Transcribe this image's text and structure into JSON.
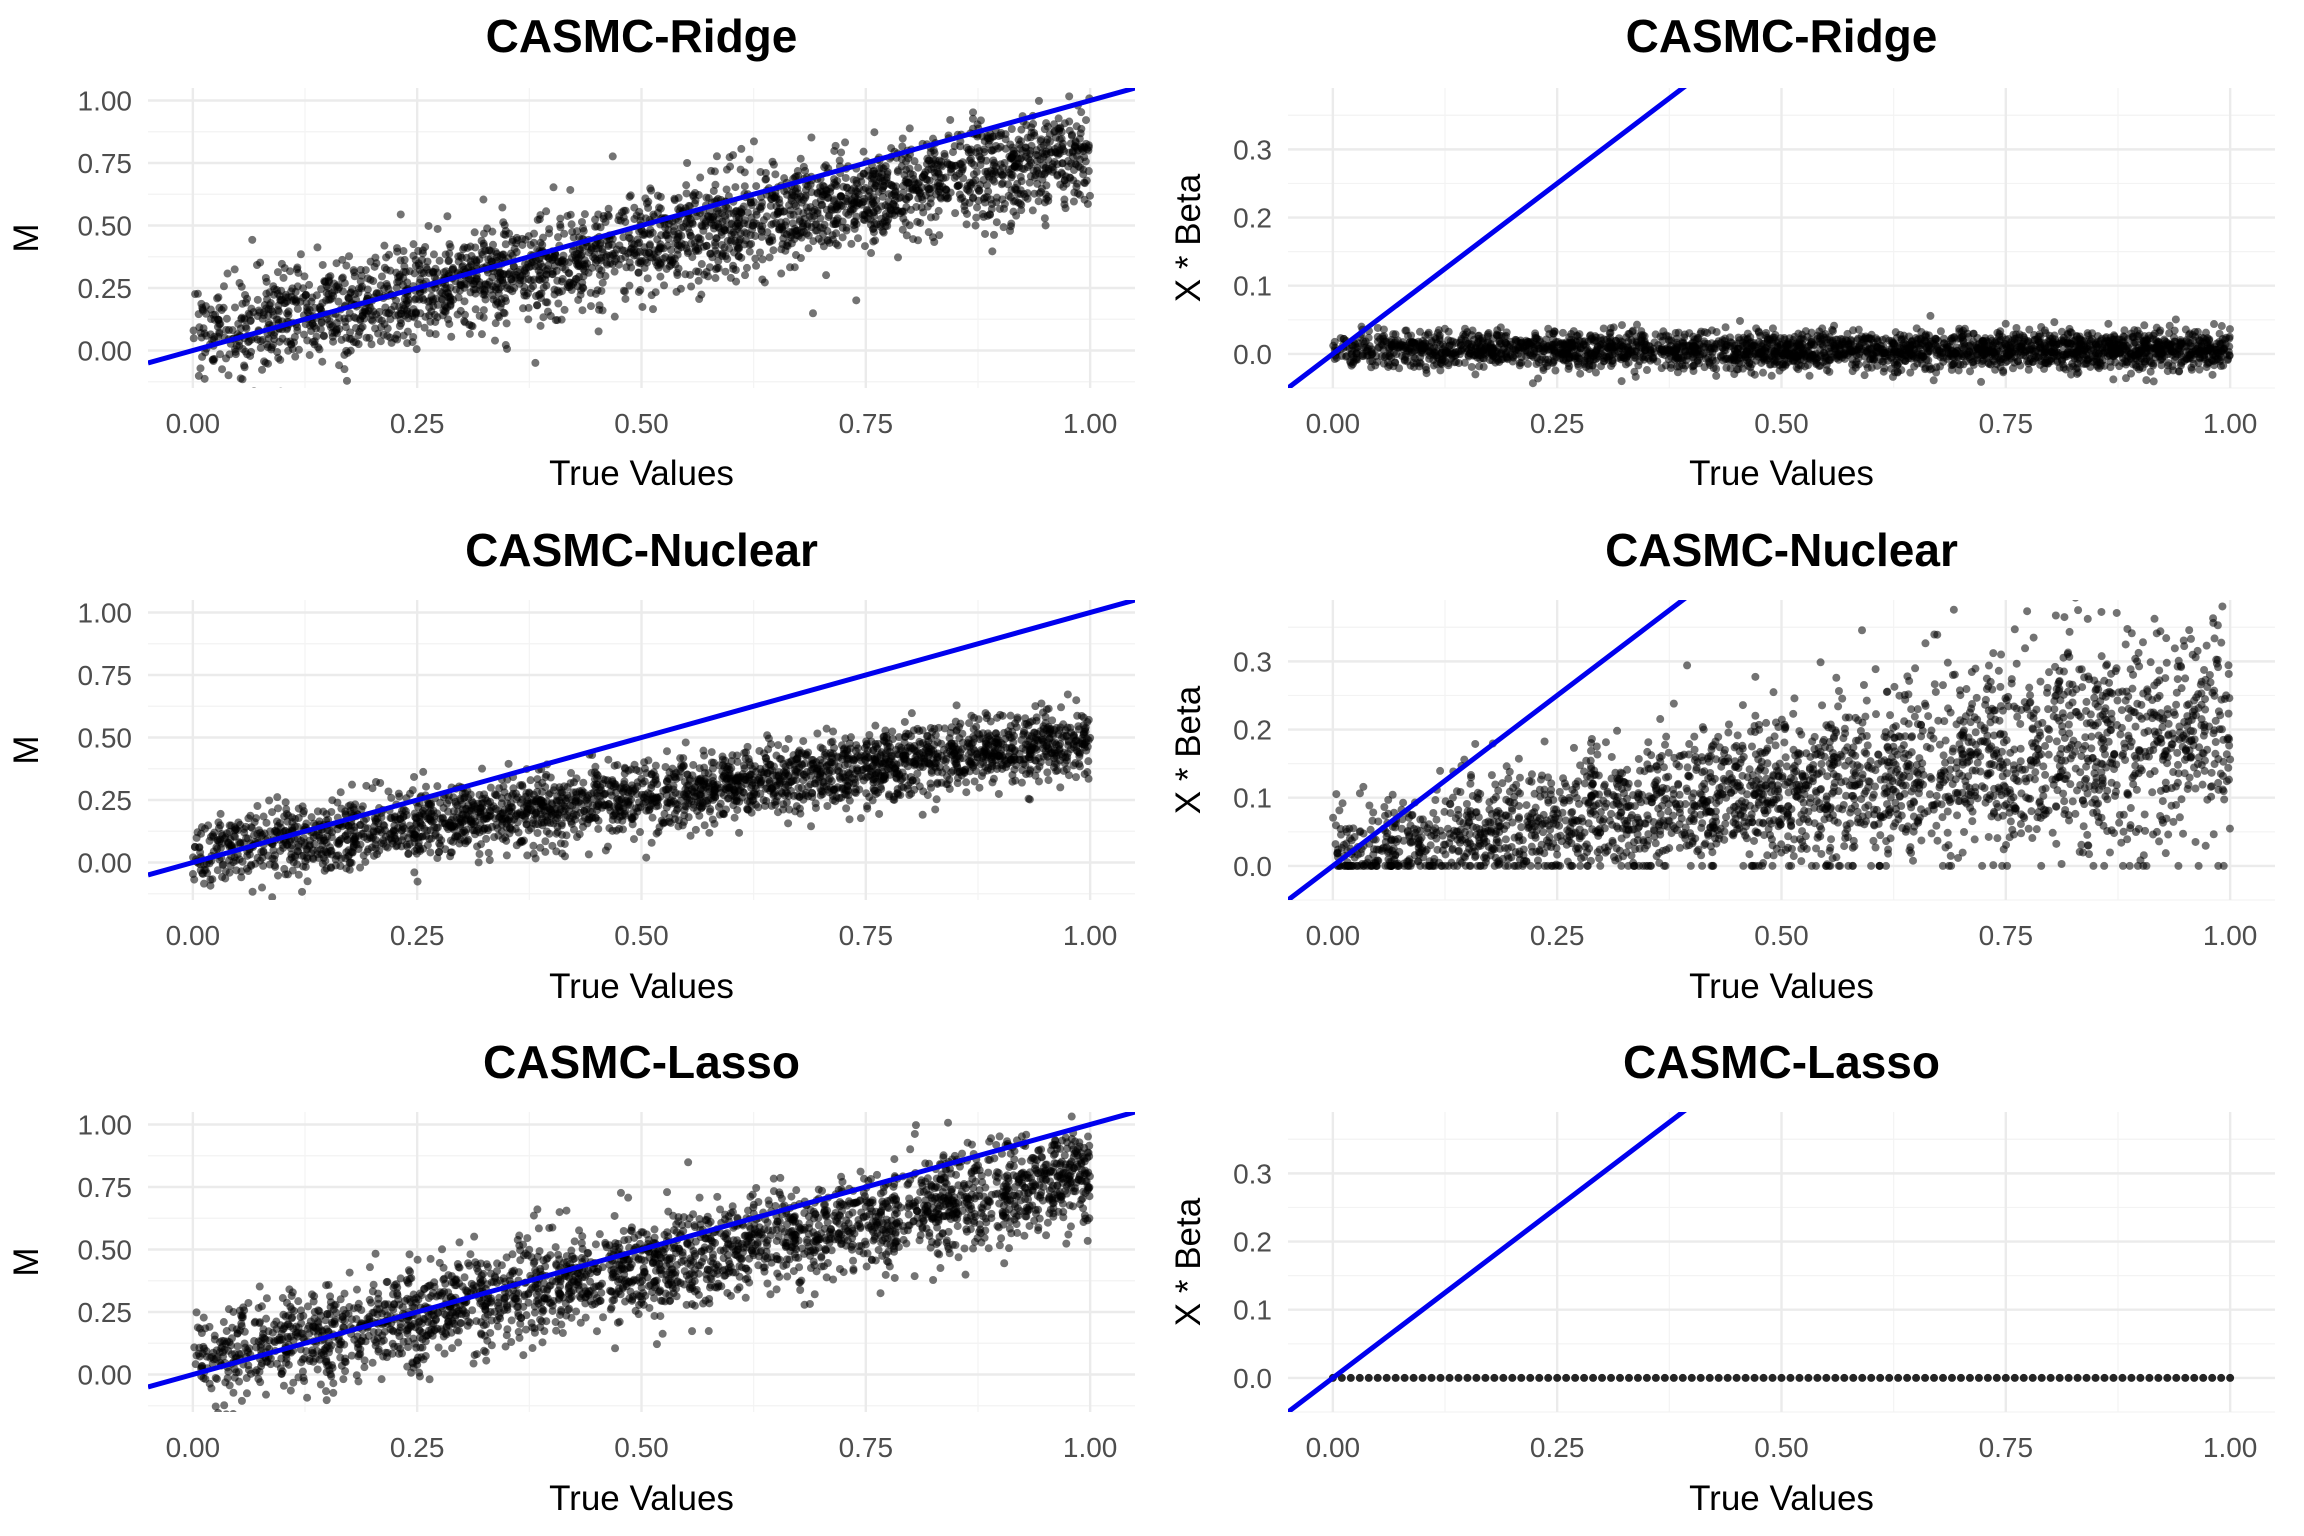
{
  "chart_data": [
    {
      "type": "scatter",
      "title": "CASMC-Ridge",
      "xlabel": "True Values",
      "ylabel": "M",
      "xlim": [
        -0.05,
        1.05
      ],
      "ylim": [
        -0.15,
        1.05
      ],
      "x_ticks": [
        "0.00",
        "0.25",
        "0.50",
        "0.75",
        "1.00"
      ],
      "y_ticks": [
        "0.00",
        "0.25",
        "0.50",
        "0.75",
        "1.00"
      ],
      "reference_line": {
        "slope": 1,
        "intercept": 0,
        "color": "#0000ee"
      },
      "point_color": "#000000",
      "point_cloud": {
        "trend_slope": 0.75,
        "trend_intercept": 0.05,
        "spread": 0.1,
        "x_range": [
          0,
          1
        ]
      }
    },
    {
      "type": "scatter",
      "title": "CASMC-Ridge",
      "xlabel": "True Values",
      "ylabel": "X * Beta",
      "xlim": [
        -0.05,
        1.05
      ],
      "ylim": [
        -0.05,
        0.39
      ],
      "x_ticks": [
        "0.00",
        "0.25",
        "0.50",
        "0.75",
        "1.00"
      ],
      "y_ticks": [
        "0.0",
        "0.1",
        "0.2",
        "0.3"
      ],
      "reference_line": {
        "slope": 1,
        "intercept": 0,
        "color": "#0000ee"
      },
      "point_color": "#000000",
      "point_cloud": {
        "trend_slope": 0,
        "trend_intercept": 0.005,
        "spread": 0.014,
        "x_range": [
          0,
          1
        ]
      }
    },
    {
      "type": "scatter",
      "title": "CASMC-Nuclear",
      "xlabel": "True Values",
      "ylabel": "M",
      "xlim": [
        -0.05,
        1.05
      ],
      "ylim": [
        -0.15,
        1.05
      ],
      "x_ticks": [
        "0.00",
        "0.25",
        "0.50",
        "0.75",
        "1.00"
      ],
      "y_ticks": [
        "0.00",
        "0.25",
        "0.50",
        "0.75",
        "1.00"
      ],
      "reference_line": {
        "slope": 1,
        "intercept": 0,
        "color": "#0000ee"
      },
      "point_color": "#000000",
      "point_cloud": {
        "trend_slope": 0.45,
        "trend_intercept": 0.04,
        "spread": 0.07,
        "x_range": [
          0,
          1
        ]
      }
    },
    {
      "type": "scatter",
      "title": "CASMC-Nuclear",
      "xlabel": "True Values",
      "ylabel": "X * Beta",
      "xlim": [
        -0.05,
        1.05
      ],
      "ylim": [
        -0.05,
        0.39
      ],
      "x_ticks": [
        "0.00",
        "0.25",
        "0.50",
        "0.75",
        "1.00"
      ],
      "y_ticks": [
        "0.0",
        "0.1",
        "0.2",
        "0.3"
      ],
      "reference_line": {
        "slope": 1,
        "intercept": 0,
        "color": "#0000ee"
      },
      "point_color": "#000000",
      "point_cloud": {
        "trend_slope": 0.18,
        "trend_intercept": 0.02,
        "spread": 0.06,
        "floor": 0.0,
        "x_range": [
          0,
          1
        ]
      }
    },
    {
      "type": "scatter",
      "title": "CASMC-Lasso",
      "xlabel": "True Values",
      "ylabel": "M",
      "xlim": [
        -0.05,
        1.05
      ],
      "ylim": [
        -0.15,
        1.05
      ],
      "x_ticks": [
        "0.00",
        "0.25",
        "0.50",
        "0.75",
        "1.00"
      ],
      "y_ticks": [
        "0.00",
        "0.25",
        "0.50",
        "0.75",
        "1.00"
      ],
      "reference_line": {
        "slope": 1,
        "intercept": 0,
        "color": "#0000ee"
      },
      "point_color": "#000000",
      "point_cloud": {
        "trend_slope": 0.75,
        "trend_intercept": 0.05,
        "spread": 0.1,
        "x_range": [
          0,
          1
        ]
      }
    },
    {
      "type": "scatter",
      "title": "CASMC-Lasso",
      "xlabel": "True Values",
      "ylabel": "X * Beta",
      "xlim": [
        -0.05,
        1.05
      ],
      "ylim": [
        -0.05,
        0.39
      ],
      "x_ticks": [
        "0.00",
        "0.25",
        "0.50",
        "0.75",
        "1.00"
      ],
      "y_ticks": [
        "0.0",
        "0.1",
        "0.2",
        "0.3"
      ],
      "reference_line": {
        "slope": 1,
        "intercept": 0,
        "color": "#0000ee"
      },
      "point_color": "#000000",
      "point_cloud": {
        "trend_slope": 0,
        "trend_intercept": 0,
        "spread": 0,
        "x_range": [
          0,
          1
        ]
      }
    }
  ]
}
